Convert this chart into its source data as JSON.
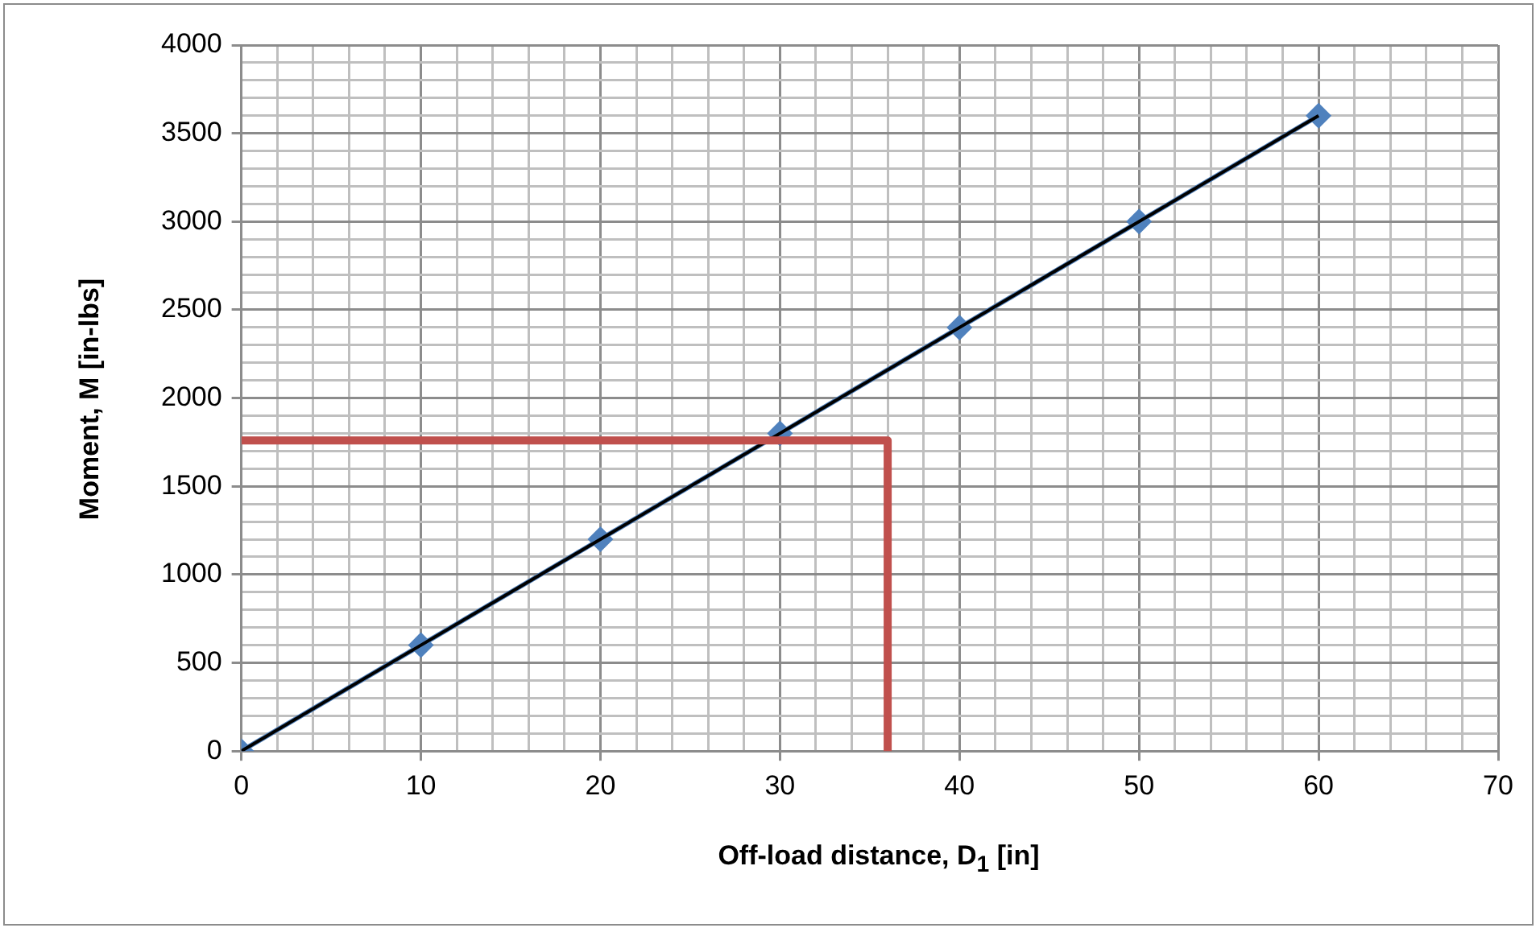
{
  "chart_data": {
    "type": "scatter",
    "xlabel": "Off-load distance, D$_{1}$ [in]",
    "ylabel": "Moment, M [in-lbs]",
    "series": [
      {
        "type": "line",
        "color": "#4f81bd",
        "marker": "diamond",
        "x": [
          0,
          10,
          20,
          30,
          40,
          50,
          60
        ],
        "values": [
          0,
          600,
          1200,
          1800,
          2400,
          3000,
          3600
        ]
      },
      {
        "type": "line",
        "color": "#000000",
        "marker": "none",
        "x": [
          0,
          60
        ],
        "values": [
          0,
          3600
        ]
      },
      {
        "type": "line",
        "color": "#c0504d",
        "marker": "none",
        "x": [
          0,
          36,
          36
        ],
        "values": [
          1760,
          1760,
          0
        ]
      }
    ],
    "xlim": [
      0,
      70
    ],
    "xticks": [
      0,
      {
        "value": 2,
        "label": null
      },
      {
        "value": 4,
        "label": null
      },
      {
        "value": 6,
        "label": null
      },
      {
        "value": 8,
        "label": null
      },
      10,
      {
        "value": 12,
        "label": null
      },
      {
        "value": 14,
        "label": null
      },
      {
        "value": 16,
        "label": null
      },
      {
        "value": 18,
        "label": null
      },
      20,
      {
        "value": 22,
        "label": null
      },
      {
        "value": 24,
        "label": null
      },
      {
        "value": 26,
        "label": null
      },
      {
        "value": 28,
        "label": null
      },
      30,
      {
        "value": 32,
        "label": null
      },
      {
        "value": 34,
        "label": null
      },
      {
        "value": 36,
        "label": null
      },
      {
        "value": 38,
        "label": null
      },
      40,
      {
        "value": 42,
        "label": null
      },
      {
        "value": 44,
        "label": null
      },
      {
        "value": 46,
        "label": null
      },
      {
        "value": 48,
        "label": null
      },
      50,
      {
        "value": 52,
        "label": null
      },
      {
        "value": 54,
        "label": null
      },
      {
        "value": 56,
        "label": null
      },
      {
        "value": 58,
        "label": null
      },
      60,
      {
        "value": 62,
        "label": null
      },
      {
        "value": 64,
        "label": null
      },
      {
        "value": 66,
        "label": null
      },
      {
        "value": 68,
        "label": null
      },
      70
    ],
    "ylim": [
      0,
      4000
    ],
    "yticks": [
      0,
      {
        "value": 100,
        "label": null
      },
      {
        "value": 200,
        "label": null
      },
      {
        "value": 300,
        "label": null
      },
      {
        "value": 400,
        "label": null
      },
      500,
      {
        "value": 600,
        "label": null
      },
      {
        "value": 700,
        "label": null
      },
      {
        "value": 800,
        "label": null
      },
      {
        "value": 900,
        "label": null
      },
      1000,
      {
        "value": 1100,
        "label": null
      },
      {
        "value": 1200,
        "label": null
      },
      {
        "value": 1300,
        "label": null
      },
      {
        "value": 1400,
        "label": null
      },
      1500,
      {
        "value": 1600,
        "label": null
      },
      {
        "value": 1700,
        "label": null
      },
      {
        "value": 1800,
        "label": null
      },
      {
        "value": 1900,
        "label": null
      },
      2000,
      {
        "value": 2100,
        "label": null
      },
      {
        "value": 2200,
        "label": null
      },
      {
        "value": 2300,
        "label": null
      },
      {
        "value": 2400,
        "label": null
      },
      2500,
      {
        "value": 2600,
        "label": null
      },
      {
        "value": 2700,
        "label": null
      },
      {
        "value": 2800,
        "label": null
      },
      {
        "value": 2900,
        "label": null
      },
      3000,
      {
        "value": 3100,
        "label": null
      },
      {
        "value": 3200,
        "label": null
      },
      {
        "value": 3300,
        "label": null
      },
      {
        "value": 3400,
        "label": null
      },
      3500,
      {
        "value": 3600,
        "label": null
      },
      {
        "value": 3700,
        "label": null
      },
      {
        "value": 3800,
        "label": null
      },
      {
        "value": 3900,
        "label": null
      },
      4000
    ],
    "grid": true,
    "legend": false
  }
}
